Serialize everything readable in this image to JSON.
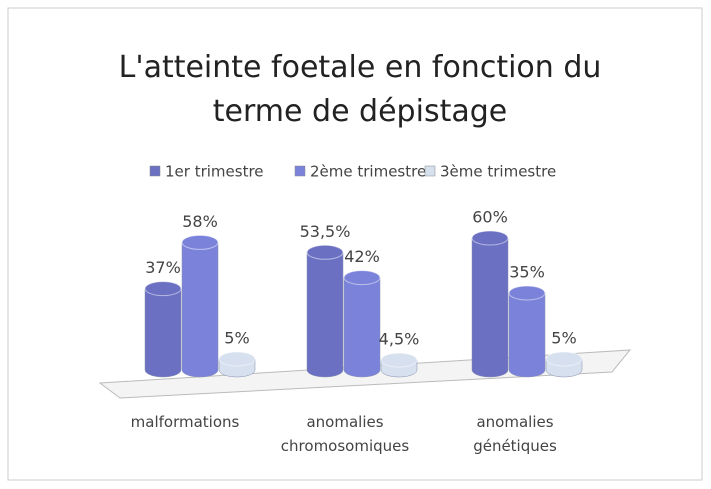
{
  "chart_data": {
    "type": "bar3d",
    "title": "L'atteinte foetale en fonction du terme de dépistage",
    "categories": [
      "malformations",
      "anomalies chromosomiques",
      "anomalies génétiques"
    ],
    "series": [
      {
        "name": "1er trimestre",
        "color": "#6b70c2",
        "values": [
          37,
          53.5,
          60
        ],
        "value_labels": [
          "37%",
          "53,5%",
          "60%"
        ]
      },
      {
        "name": "2ème trimestre",
        "color": "#7b82da",
        "values": [
          58,
          42,
          35
        ],
        "value_labels": [
          "58%",
          "42%",
          "35%"
        ]
      },
      {
        "name": "3ème trimestre",
        "color": "#d6e0ee",
        "values": [
          5,
          4.5,
          5
        ],
        "value_labels": [
          "5%",
          "4,5%",
          "5%"
        ]
      }
    ],
    "legend": "top"
  }
}
